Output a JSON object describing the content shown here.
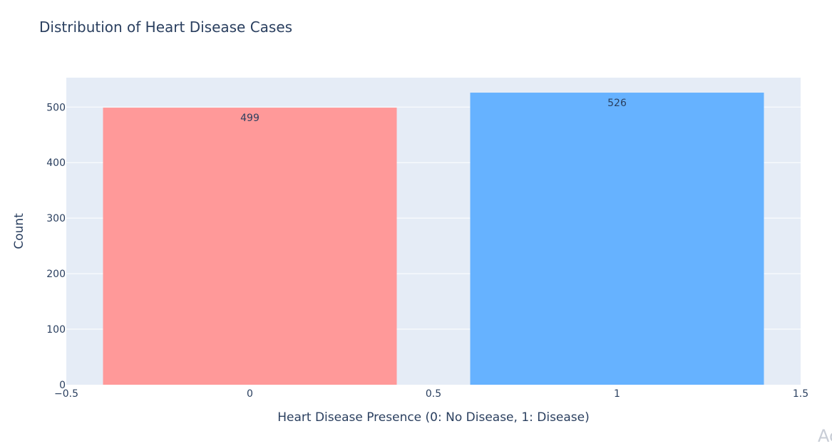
{
  "watermark_text": "Ac",
  "chart_data": {
    "type": "bar",
    "title": "Distribution of Heart Disease Cases",
    "xlabel": "Heart Disease Presence (0: No Disease, 1: Disease)",
    "ylabel": "Count",
    "x": [
      0,
      1
    ],
    "values": [
      499,
      526
    ],
    "data_labels": [
      "499",
      "526"
    ],
    "bar_colors": [
      "#ff9999",
      "#66b2ff"
    ],
    "xlim": [
      -0.5,
      1.5
    ],
    "ylim": [
      0,
      553
    ],
    "xticks": [
      -0.5,
      0,
      0.5,
      1,
      1.5
    ],
    "xtick_labels": [
      "−0.5",
      "0",
      "0.5",
      "1",
      "1.5"
    ],
    "yticks": [
      0,
      100,
      200,
      300,
      400,
      500
    ],
    "ytick_labels": [
      "0",
      "100",
      "200",
      "300",
      "400",
      "500"
    ],
    "grid": true,
    "plot_bgcolor": "#e5ecf6",
    "text_color": "#2a3f5f"
  }
}
